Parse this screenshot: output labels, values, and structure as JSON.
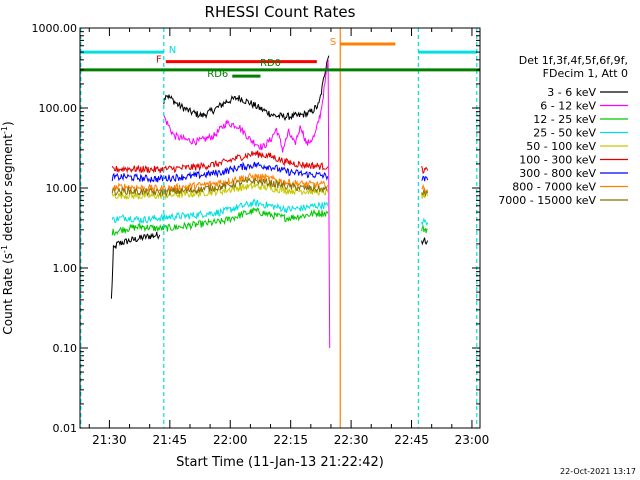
{
  "chart_data": {
    "type": "line",
    "title": "RHESSI Count Rates",
    "xlabel": "Start Time (11-Jan-13 21:22:42)",
    "ylabel_parts": [
      "Count Rate (s",
      "-1",
      " detector segment",
      "-1",
      ")"
    ],
    "yscale": "log",
    "ylim": [
      0.01,
      1000
    ],
    "xlim_minutes": [
      1282.7,
      1382
    ],
    "y_ticks": [
      {
        "value": 1000,
        "label": "1000.00"
      },
      {
        "value": 100,
        "label": "100.00"
      },
      {
        "value": 10,
        "label": "10.00"
      },
      {
        "value": 1,
        "label": "1.00"
      },
      {
        "value": 0.1,
        "label": "0.10"
      },
      {
        "value": 0.01,
        "label": "0.01"
      }
    ],
    "x_ticks": [
      {
        "minute": 1290,
        "label": "21:30"
      },
      {
        "minute": 1305,
        "label": "21:45"
      },
      {
        "minute": 1320,
        "label": "22:00"
      },
      {
        "minute": 1335,
        "label": "22:15"
      },
      {
        "minute": 1350,
        "label": "22:30"
      },
      {
        "minute": 1365,
        "label": "22:45"
      },
      {
        "minute": 1380,
        "label": "23:00"
      }
    ],
    "legend": {
      "header": [
        "Det 1f,3f,4f,5f,6f,9f,",
        "FDecim 1, Att 0"
      ],
      "position": "right",
      "entries": [
        {
          "label": "3 - 6 keV",
          "color": "#000000"
        },
        {
          "label": "6 - 12 keV",
          "color": "#ff00ff"
        },
        {
          "label": "12 - 25 keV",
          "color": "#00c800"
        },
        {
          "label": "25 - 50 keV",
          "color": "#00e0e0"
        },
        {
          "label": "50 - 100 keV",
          "color": "#c8c800"
        },
        {
          "label": "100 - 300 keV",
          "color": "#e00000"
        },
        {
          "label": "300 - 800 keV",
          "color": "#0000ff"
        },
        {
          "label": "800 - 7000 keV",
          "color": "#ff8000"
        },
        {
          "label": "7000 - 15000 keV",
          "color": "#8b7000"
        }
      ]
    },
    "series": [
      {
        "color": "#000000",
        "segments": [
          {
            "x": [
              1290.5,
              1291,
              1292,
              1295,
              1300,
              1302.5
            ],
            "y": [
              0.4,
              1.7,
              2,
              2.2,
              2.5,
              2.6
            ]
          },
          {
            "x": [
              1303.5,
              1304,
              1307,
              1310,
              1313,
              1316,
              1319,
              1322,
              1325,
              1328,
              1331,
              1334,
              1337,
              1340,
              1342,
              1343,
              1344,
              1344.5
            ],
            "y": [
              120,
              150,
              110,
              90,
              80,
              95,
              120,
              135,
              115,
              95,
              80,
              78,
              80,
              88,
              110,
              200,
              400,
              450
            ]
          },
          {
            "x": [
              1367.5,
              1369
            ],
            "y": [
              2.2,
              2.2
            ]
          }
        ]
      },
      {
        "color": "#ff00ff",
        "segments": [
          {
            "x": [
              1303.5,
              1304,
              1306,
              1309,
              1312,
              1316,
              1319,
              1322,
              1325,
              1328,
              1330,
              1331.5,
              1333,
              1334.5,
              1336,
              1337.5,
              1339,
              1341,
              1342.5,
              1343.5,
              1344.3,
              1344.7
            ],
            "y": [
              80,
              70,
              45,
              40,
              38,
              45,
              65,
              60,
              40,
              32,
              40,
              55,
              30,
              50,
              35,
              60,
              35,
              45,
              90,
              200,
              380,
              0.1
            ]
          }
        ]
      },
      {
        "color": "#00c800",
        "segments": [
          {
            "x": [
              1290.7,
              1294,
              1298,
              1302,
              1306,
              1310,
              1314,
              1318,
              1322,
              1326,
              1330,
              1334,
              1338,
              1342,
              1344.2
            ],
            "y": [
              2.8,
              3.1,
              3.3,
              3.1,
              3.2,
              3.4,
              3.6,
              3.8,
              4.5,
              5.2,
              4.6,
              4.2,
              4.5,
              4.9,
              4.8
            ]
          },
          {
            "x": [
              1367.5,
              1369
            ],
            "y": [
              3.1,
              3.0
            ]
          }
        ]
      },
      {
        "color": "#00e0e0",
        "segments": [
          {
            "x": [
              1290.7,
              1294,
              1298,
              1302,
              1306,
              1310,
              1314,
              1318,
              1322,
              1326,
              1330,
              1334,
              1338,
              1342,
              1344.2
            ],
            "y": [
              4.0,
              4.3,
              4.0,
              4.2,
              4.4,
              4.5,
              4.8,
              5.0,
              5.8,
              6.5,
              6.0,
              5.4,
              5.6,
              6.1,
              6.0
            ]
          },
          {
            "x": [
              1367.5,
              1369
            ],
            "y": [
              3.8,
              3.7
            ]
          }
        ]
      },
      {
        "color": "#c8c800",
        "segments": [
          {
            "x": [
              1290.7,
              1294,
              1298,
              1302,
              1306,
              1310,
              1314,
              1318,
              1322,
              1326,
              1330,
              1334,
              1338,
              1342,
              1344.2
            ],
            "y": [
              8.0,
              8.1,
              7.9,
              8.0,
              8.2,
              8.4,
              8.8,
              9.2,
              10.0,
              10.6,
              10.0,
              9.3,
              9.2,
              9.0,
              8.8
            ]
          },
          {
            "x": [
              1367.5,
              1369
            ],
            "y": [
              8.0,
              8.0
            ]
          }
        ]
      },
      {
        "color": "#e00000",
        "segments": [
          {
            "x": [
              1290.7,
              1294,
              1298,
              1302,
              1306,
              1310,
              1314,
              1318,
              1322,
              1326,
              1330,
              1334,
              1338,
              1342,
              1344.2
            ],
            "y": [
              17.0,
              17.5,
              17.2,
              17.0,
              17.5,
              18.0,
              19.0,
              20.5,
              24.0,
              27.0,
              25.0,
              21.0,
              19.5,
              18.8,
              18.5
            ]
          },
          {
            "x": [
              1367.5,
              1369
            ],
            "y": [
              17.0,
              16.5
            ]
          }
        ]
      },
      {
        "color": "#0000ff",
        "segments": [
          {
            "x": [
              1290.7,
              1294,
              1298,
              1302,
              1306,
              1310,
              1314,
              1318,
              1322,
              1326,
              1330,
              1334,
              1338,
              1342,
              1344.2
            ],
            "y": [
              13.5,
              13.8,
              13.2,
              13.0,
              13.5,
              14.0,
              14.8,
              15.8,
              18.0,
              19.5,
              18.5,
              16.0,
              15.0,
              14.5,
              14.0
            ]
          },
          {
            "x": [
              1367.5,
              1369
            ],
            "y": [
              13.0,
              12.5
            ]
          }
        ]
      },
      {
        "color": "#ff8000",
        "segments": [
          {
            "x": [
              1290.7,
              1294,
              1298,
              1302,
              1306,
              1310,
              1314,
              1318,
              1322,
              1326,
              1330,
              1334,
              1338,
              1342,
              1344.2
            ],
            "y": [
              10.0,
              10.4,
              10.0,
              9.8,
              10.0,
              10.5,
              11.0,
              11.8,
              13.0,
              14.0,
              13.0,
              11.8,
              11.2,
              11.0,
              10.8
            ]
          },
          {
            "x": [
              1367.5,
              1369
            ],
            "y": [
              9.8,
              9.5
            ]
          }
        ]
      },
      {
        "color": "#8b7000",
        "segments": [
          {
            "x": [
              1290.7,
              1294,
              1298,
              1302,
              1306,
              1310,
              1314,
              1318,
              1322,
              1326,
              1330,
              1334,
              1338,
              1342,
              1344.2
            ],
            "y": [
              9.0,
              9.2,
              8.9,
              8.8,
              9.0,
              9.3,
              9.8,
              10.4,
              11.5,
              12.3,
              11.5,
              10.5,
              10.0,
              9.7,
              9.5
            ]
          },
          {
            "x": [
              1367.5,
              1369
            ],
            "y": [
              8.8,
              8.6
            ]
          }
        ]
      }
    ],
    "vertical_lines": [
      {
        "minute": 1282.9,
        "color": "#00e0e0",
        "dashed": true
      },
      {
        "minute": 1303.5,
        "color": "#00e0e0",
        "dashed": true
      },
      {
        "minute": 1366.7,
        "color": "#00e0e0",
        "dashed": true
      },
      {
        "minute": 1381.2,
        "color": "#00e0e0",
        "dashed": true
      },
      {
        "minute": 1347.3,
        "color": "#ff8000",
        "dashed": false
      }
    ],
    "bars": [
      {
        "label": "N",
        "label_side": "right",
        "color": "#00e0e0",
        "x": [
          1282.7,
          1303.5
        ],
        "y": 500
      },
      {
        "label": "",
        "label_side": "right",
        "color": "#00e0e0",
        "x": [
          1366.7,
          1381.2
        ],
        "y": 500
      },
      {
        "label": "F",
        "label_side": "left",
        "color": "#ff0000",
        "x": [
          1304,
          1341.5
        ],
        "y": 380
      },
      {
        "label": "RD0",
        "label_side": "center",
        "color": "#008000",
        "x": [
          1282.7,
          1382
        ],
        "y": 300
      },
      {
        "label": "RD6",
        "label_side": "left",
        "color": "#008000",
        "x": [
          1320.5,
          1327.5
        ],
        "y": 250
      },
      {
        "label": "S",
        "label_side": "left",
        "color": "#ff8000",
        "x": [
          1347.3,
          1361
        ],
        "y": 630
      }
    ],
    "footer_date": "22-Oct-2021 13:17"
  }
}
